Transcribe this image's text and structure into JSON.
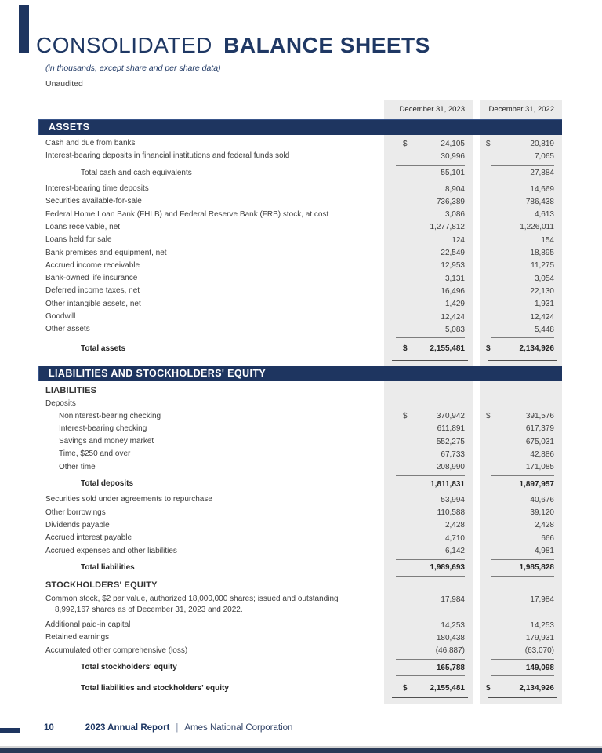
{
  "colors": {
    "navy": "#1e3560",
    "column_bg": "#ebebeb",
    "title_navy": "#1f3864"
  },
  "header": {
    "title_regular": "CONSOLIDATED",
    "title_bold": "BALANCE SHEETS",
    "subtitle": "(in thousands, except share and per share data)",
    "unaudited": "Unaudited"
  },
  "table": {
    "currency_symbol": "$",
    "col_headers": [
      "December 31, 2023",
      "December 31, 2022"
    ],
    "rows": [
      {
        "t": "bar",
        "label": "ASSETS"
      },
      {
        "t": "item",
        "dollar": true,
        "label": "Cash and due from banks",
        "v1": "24,105",
        "v2": "20,819"
      },
      {
        "t": "item",
        "label": "Interest-bearing deposits in financial institutions and federal funds sold",
        "v1": "30,996",
        "v2": "7,065"
      },
      {
        "t": "rule"
      },
      {
        "t": "item",
        "indent": 2,
        "label": "Total cash and cash equivalents",
        "v1": "55,101",
        "v2": "27,884"
      },
      {
        "t": "gap",
        "h": 4
      },
      {
        "t": "item",
        "label": "Interest-bearing time deposits",
        "v1": "8,904",
        "v2": "14,669"
      },
      {
        "t": "item",
        "label": "Securities available-for-sale",
        "v1": "736,389",
        "v2": "786,438"
      },
      {
        "t": "item",
        "label": "Federal Home Loan Bank (FHLB) and Federal Reserve Bank (FRB) stock, at cost",
        "v1": "3,086",
        "v2": "4,613"
      },
      {
        "t": "item",
        "label": "Loans receivable, net",
        "v1": "1,277,812",
        "v2": "1,226,011"
      },
      {
        "t": "item",
        "label": "Loans held for sale",
        "v1": "124",
        "v2": "154"
      },
      {
        "t": "item",
        "label": "Bank premises and equipment, net",
        "v1": "22,549",
        "v2": "18,895"
      },
      {
        "t": "item",
        "label": "Accrued income receivable",
        "v1": "12,953",
        "v2": "11,275"
      },
      {
        "t": "item",
        "label": "Bank-owned life insurance",
        "v1": "3,131",
        "v2": "3,054"
      },
      {
        "t": "item",
        "label": "Deferred income taxes, net",
        "v1": "16,496",
        "v2": "22,130"
      },
      {
        "t": "item",
        "label": "Other intangible assets, net",
        "v1": "1,429",
        "v2": "1,931"
      },
      {
        "t": "item",
        "label": "Goodwill",
        "v1": "12,424",
        "v2": "12,424"
      },
      {
        "t": "item",
        "label": "Other assets",
        "v1": "5,083",
        "v2": "5,448"
      },
      {
        "t": "rule"
      },
      {
        "t": "gap",
        "h": 2
      },
      {
        "t": "item",
        "indent": 2,
        "bold": true,
        "dollar": true,
        "tall": true,
        "label": "Total assets",
        "v1": "2,155,481",
        "v2": "2,134,926"
      },
      {
        "t": "dblrule"
      },
      {
        "t": "gap",
        "h": 4
      },
      {
        "t": "bar",
        "label": "LIABILITIES AND STOCKHOLDERS' EQUITY"
      },
      {
        "t": "sub",
        "label": "LIABILITIES"
      },
      {
        "t": "plain",
        "label": "Deposits"
      },
      {
        "t": "item",
        "indent": 1,
        "dollar": true,
        "label": "Noninterest-bearing checking",
        "v1": "370,942",
        "v2": "391,576"
      },
      {
        "t": "item",
        "indent": 1,
        "label": "Interest-bearing checking",
        "v1": "611,891",
        "v2": "617,379"
      },
      {
        "t": "item",
        "indent": 1,
        "label": "Savings and money market",
        "v1": "552,275",
        "v2": "675,031"
      },
      {
        "t": "item",
        "indent": 1,
        "label": "Time, $250 and over",
        "v1": "67,733",
        "v2": "42,886"
      },
      {
        "t": "item",
        "indent": 1,
        "label": "Other time",
        "v1": "208,990",
        "v2": "171,085"
      },
      {
        "t": "rule"
      },
      {
        "t": "item",
        "indent": 2,
        "bold": true,
        "label": "Total deposits",
        "v1": "1,811,831",
        "v2": "1,897,957"
      },
      {
        "t": "gap",
        "h": 4
      },
      {
        "t": "item",
        "label": "Securities sold under agreements to repurchase",
        "v1": "53,994",
        "v2": "40,676"
      },
      {
        "t": "item",
        "label": "Other borrowings",
        "v1": "110,588",
        "v2": "39,120"
      },
      {
        "t": "item",
        "label": "Dividends payable",
        "v1": "2,428",
        "v2": "2,428"
      },
      {
        "t": "item",
        "label": "Accrued interest payable",
        "v1": "4,710",
        "v2": "666"
      },
      {
        "t": "item",
        "label": "Accrued expenses and other liabilities",
        "v1": "6,142",
        "v2": "4,981"
      },
      {
        "t": "rule"
      },
      {
        "t": "item",
        "indent": 2,
        "bold": true,
        "label": "Total liabilities",
        "v1": "1,989,693",
        "v2": "1,985,828"
      },
      {
        "t": "rule"
      },
      {
        "t": "sub",
        "label": "STOCKHOLDERS' EQUITY"
      },
      {
        "t": "gap",
        "h": 3
      },
      {
        "t": "item",
        "twoline": true,
        "label": "Common stock, $2 par value, authorized 18,000,000 shares; issued and outstanding",
        "label2": "8,992,167 shares as of December 31, 2023 and 2022.",
        "v1": "17,984",
        "v2": "17,984"
      },
      {
        "t": "item",
        "label": "Additional paid-in capital",
        "v1": "14,253",
        "v2": "14,253"
      },
      {
        "t": "item",
        "label": "Retained earnings",
        "v1": "180,438",
        "v2": "179,931"
      },
      {
        "t": "item",
        "label": "Accumulated other comprehensive (loss)",
        "v1": "(46,887)",
        "v2": "(63,070)"
      },
      {
        "t": "rule"
      },
      {
        "t": "item",
        "indent": 2,
        "bold": true,
        "label": "Total stockholders' equity",
        "v1": "165,788",
        "v2": "149,098"
      },
      {
        "t": "rule"
      },
      {
        "t": "gap",
        "h": 4
      },
      {
        "t": "item",
        "indent": 2,
        "bold": true,
        "dollar": true,
        "tall": true,
        "label": "Total liabilities and stockholders' equity",
        "v1": "2,155,481",
        "v2": "2,134,926"
      },
      {
        "t": "dblrule"
      }
    ]
  },
  "footer": {
    "page_number": "10",
    "report": "2023 Annual Report",
    "separator": "|",
    "company": "Ames National Corporation"
  }
}
